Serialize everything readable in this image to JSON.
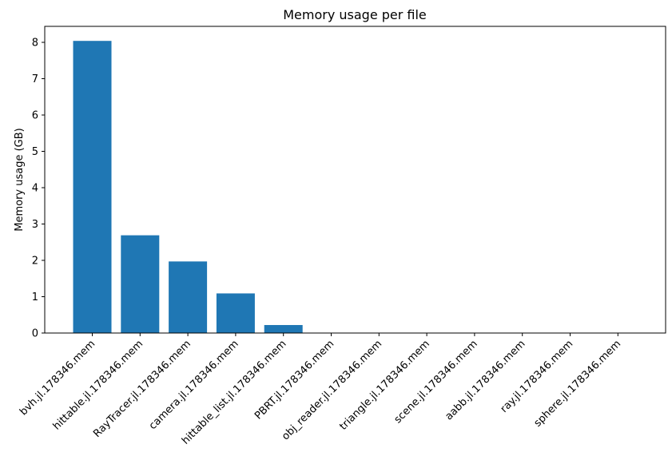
{
  "chart_data": {
    "type": "bar",
    "title": "Memory usage per file",
    "xlabel": "",
    "ylabel": "Memory usage (GB)",
    "categories": [
      "bvh.jl.178346.mem",
      "hittable.jl.178346.mem",
      "RayTracer.jl.178346.mem",
      "camera.jl.178346.mem",
      "hittable_list.jl.178346.mem",
      "PBRT.jl.178346.mem",
      "obj_reader.jl.178346.mem",
      "triangle.jl.178346.mem",
      "scene.jl.178346.mem",
      "aabb.jl.178346.mem",
      "ray.jl.178346.mem",
      "sphere.jl.178346.mem"
    ],
    "values": [
      8.04,
      2.69,
      1.97,
      1.09,
      0.22,
      0.005,
      0.003,
      0.002,
      0.001,
      0.001,
      0.001,
      0.001
    ],
    "ylim": [
      0,
      8.44
    ],
    "yticks": [
      0,
      1,
      2,
      3,
      4,
      5,
      6,
      7,
      8
    ],
    "bar_color": "#1f77b4",
    "grid": false
  }
}
